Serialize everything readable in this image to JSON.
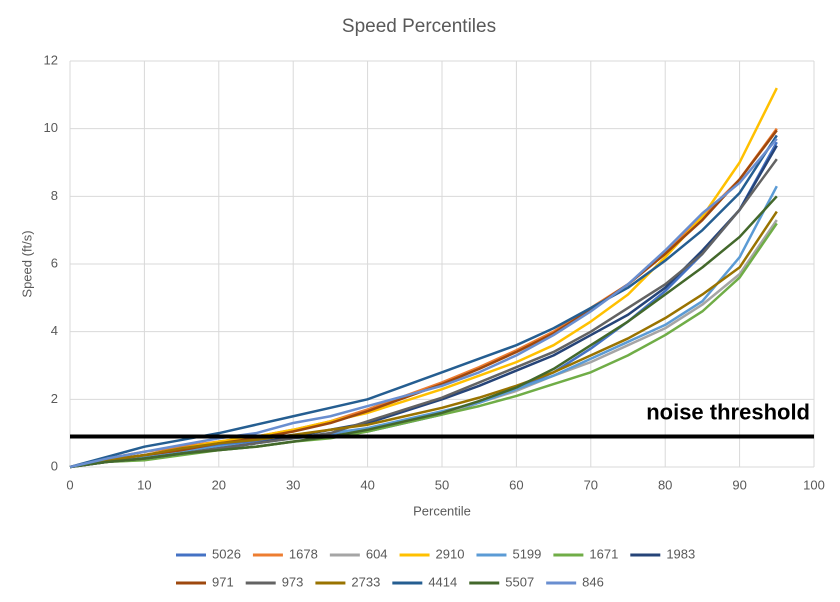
{
  "chart_data": {
    "type": "line",
    "title": "Speed Percentiles",
    "x_label": "Percentile",
    "y_label": "Speed (ft/s)",
    "x": [
      0,
      5,
      10,
      15,
      20,
      25,
      30,
      35,
      40,
      45,
      50,
      55,
      60,
      65,
      70,
      75,
      80,
      85,
      90,
      95
    ],
    "xlim": [
      0,
      100
    ],
    "xticks": [
      0,
      10,
      20,
      30,
      40,
      50,
      60,
      70,
      80,
      90,
      100
    ],
    "ylim": [
      0,
      12
    ],
    "yticks": [
      0,
      2,
      4,
      6,
      8,
      10,
      12
    ],
    "grid": true,
    "legend": "bottom",
    "threshold": {
      "value": 0.9,
      "label": "noise threshold",
      "color": "#000000"
    },
    "series": [
      {
        "name": "5026",
        "color": "#4472c4",
        "values": [
          0,
          0.2,
          0.35,
          0.5,
          0.65,
          0.75,
          0.85,
          0.95,
          1.05,
          1.3,
          1.55,
          1.9,
          2.3,
          2.8,
          3.5,
          4.3,
          5.2,
          6.3,
          7.6,
          9.6
        ]
      },
      {
        "name": "1678",
        "color": "#ed7d31",
        "values": [
          0,
          0.25,
          0.45,
          0.6,
          0.75,
          0.9,
          1.1,
          1.35,
          1.7,
          2.1,
          2.5,
          2.95,
          3.45,
          4.0,
          4.7,
          5.4,
          6.3,
          7.4,
          8.5,
          10.0
        ]
      },
      {
        "name": "604",
        "color": "#a5a5a5",
        "values": [
          0,
          0.15,
          0.25,
          0.4,
          0.5,
          0.6,
          0.75,
          0.9,
          1.1,
          1.35,
          1.6,
          1.9,
          2.25,
          2.7,
          3.1,
          3.6,
          4.1,
          4.8,
          5.7,
          7.3
        ]
      },
      {
        "name": "2910",
        "color": "#ffc000",
        "values": [
          0,
          0.2,
          0.35,
          0.55,
          0.75,
          0.9,
          1.1,
          1.35,
          1.6,
          1.95,
          2.3,
          2.7,
          3.1,
          3.6,
          4.3,
          5.1,
          6.2,
          7.4,
          9.0,
          11.2
        ]
      },
      {
        "name": "5199",
        "color": "#5b9bd5",
        "values": [
          0,
          0.2,
          0.3,
          0.45,
          0.6,
          0.7,
          0.85,
          1.0,
          1.15,
          1.4,
          1.65,
          1.9,
          2.3,
          2.7,
          3.2,
          3.7,
          4.2,
          4.9,
          6.2,
          8.3
        ]
      },
      {
        "name": "1671",
        "color": "#70ad47",
        "values": [
          0,
          0.15,
          0.2,
          0.35,
          0.5,
          0.6,
          0.75,
          0.85,
          1.05,
          1.3,
          1.55,
          1.8,
          2.1,
          2.45,
          2.8,
          3.3,
          3.9,
          4.6,
          5.6,
          7.2
        ]
      },
      {
        "name": "1983",
        "color": "#264478",
        "values": [
          0,
          0.15,
          0.25,
          0.4,
          0.55,
          0.7,
          0.9,
          1.1,
          1.3,
          1.65,
          2.0,
          2.4,
          2.85,
          3.3,
          3.9,
          4.5,
          5.3,
          6.4,
          7.6,
          9.5
        ]
      },
      {
        "name": "971",
        "color": "#9e480e",
        "values": [
          0,
          0.2,
          0.35,
          0.5,
          0.7,
          0.85,
          1.05,
          1.3,
          1.65,
          2.05,
          2.45,
          2.9,
          3.4,
          3.95,
          4.65,
          5.4,
          6.3,
          7.3,
          8.5,
          9.95
        ]
      },
      {
        "name": "973",
        "color": "#636363",
        "values": [
          0,
          0.15,
          0.25,
          0.4,
          0.55,
          0.7,
          0.85,
          1.0,
          1.35,
          1.7,
          2.05,
          2.5,
          2.95,
          3.4,
          4.0,
          4.7,
          5.4,
          6.3,
          7.6,
          9.1
        ]
      },
      {
        "name": "2733",
        "color": "#997300",
        "values": [
          0,
          0.2,
          0.35,
          0.55,
          0.7,
          0.8,
          0.95,
          1.1,
          1.25,
          1.5,
          1.75,
          2.05,
          2.4,
          2.8,
          3.3,
          3.8,
          4.4,
          5.1,
          5.9,
          7.55
        ]
      },
      {
        "name": "4414",
        "color": "#255e91",
        "values": [
          0,
          0.3,
          0.6,
          0.8,
          1.0,
          1.25,
          1.5,
          1.75,
          2.0,
          2.4,
          2.8,
          3.2,
          3.6,
          4.1,
          4.7,
          5.3,
          6.1,
          7.0,
          8.1,
          9.8
        ]
      },
      {
        "name": "5507",
        "color": "#43682b",
        "values": [
          0,
          0.15,
          0.25,
          0.4,
          0.5,
          0.6,
          0.75,
          0.9,
          1.1,
          1.35,
          1.6,
          1.95,
          2.35,
          2.9,
          3.6,
          4.3,
          5.1,
          5.9,
          6.8,
          8.0
        ]
      },
      {
        "name": "846",
        "color": "#698ed0",
        "values": [
          0,
          0.25,
          0.45,
          0.65,
          0.85,
          1.0,
          1.3,
          1.5,
          1.8,
          2.1,
          2.4,
          2.8,
          3.3,
          3.9,
          4.6,
          5.4,
          6.4,
          7.5,
          8.4,
          9.7
        ]
      }
    ]
  }
}
